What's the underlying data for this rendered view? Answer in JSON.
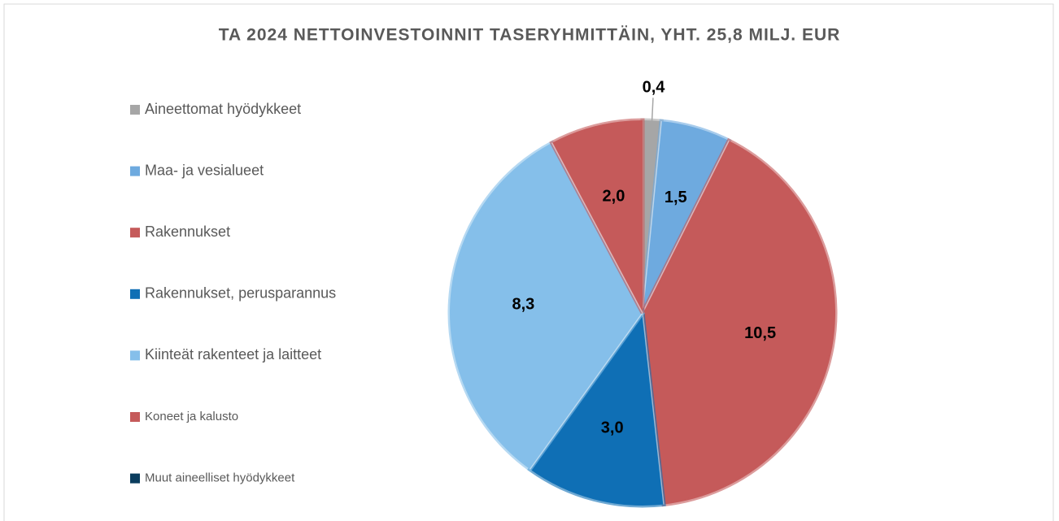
{
  "chart_data": {
    "type": "pie",
    "title": "TA 2024 NETTOINVESTOINNIT TASERYHMITTÄIN, YHT. 25,8 MILJ. EUR",
    "categories": [
      "Aineettomat hyödykkeet",
      "Maa- ja vesialueet",
      "Rakennukset",
      "Rakennukset, perusparannus",
      "Kiinteät rakenteet ja laitteet",
      "Koneet ja kalusto",
      "Muut aineelliset hyödykkeet"
    ],
    "values": [
      0.4,
      1.5,
      10.5,
      3.0,
      8.3,
      2.0,
      0
    ],
    "value_labels": [
      "0,4",
      "1,5",
      "10,5",
      "3,0",
      "8,3",
      "2,0",
      null
    ],
    "colors": [
      "#a6a6a6",
      "#6eaadf",
      "#c55a5a",
      "#0f6fb5",
      "#85bfea",
      "#c55a5a",
      "#0b3d5e"
    ],
    "legend": "left"
  }
}
